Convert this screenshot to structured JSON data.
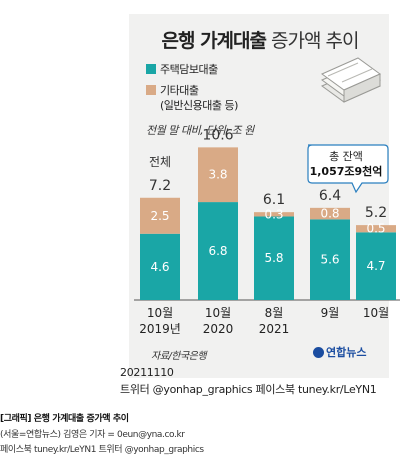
{
  "title_bold": "은행 가계대출",
  "title_light": "증가액 추이",
  "legend": {
    "housing": "주택담보대출",
    "other": "기타대출",
    "other_note": "(일반신용대출 등)"
  },
  "unit_note": "전월 말 대비, 단위: 조 원",
  "total_label": "전체",
  "balance_callout": {
    "line1": "총 잔액",
    "line2": "1,057조9천억"
  },
  "source": "자료/한국은행",
  "logo_text": "연합뉴스",
  "meta": {
    "date": "20211110",
    "social": "트위터 @yonhap_graphics  페이스북 tuney.kr/LeYN1"
  },
  "footer": {
    "line1": "[그래픽] 은행 가계대출 증가액 추이",
    "line2": "(서울=연합뉴스) 김영은 기자 = 0eun@yna.co.kr",
    "line3": "페이스북 tuney.kr/LeYN1 트위터 @yonhap_graphics"
  },
  "colors": {
    "housing": "#1aa6a6",
    "other": "#d9aa86",
    "panel": "#f1f1f0"
  },
  "chart_data": {
    "type": "bar",
    "stacked": true,
    "categories": [
      "10월 2019년",
      "10월 2020",
      "8월 2021",
      "9월",
      "10월"
    ],
    "category_lines": [
      [
        "10월",
        "2019년"
      ],
      [
        "10월",
        "2020"
      ],
      [
        "8월",
        "2021"
      ],
      [
        "9월",
        ""
      ],
      [
        "10월",
        ""
      ]
    ],
    "series": [
      {
        "name": "주택담보대출",
        "values": [
          4.6,
          6.8,
          5.8,
          5.6,
          4.7
        ]
      },
      {
        "name": "기타대출",
        "values": [
          2.5,
          3.8,
          0.3,
          0.8,
          0.5
        ]
      }
    ],
    "value_labels": [
      [
        "4.6",
        "6.8",
        "5.8",
        "5.6",
        "4.7"
      ],
      [
        "2.5",
        "3.8",
        "0.3",
        "0.8",
        "0.5"
      ]
    ],
    "totals": [
      7.2,
      10.6,
      6.1,
      6.4,
      5.2
    ],
    "ylim": [
      0,
      11
    ],
    "grid": false,
    "legend_position": "top-left"
  }
}
